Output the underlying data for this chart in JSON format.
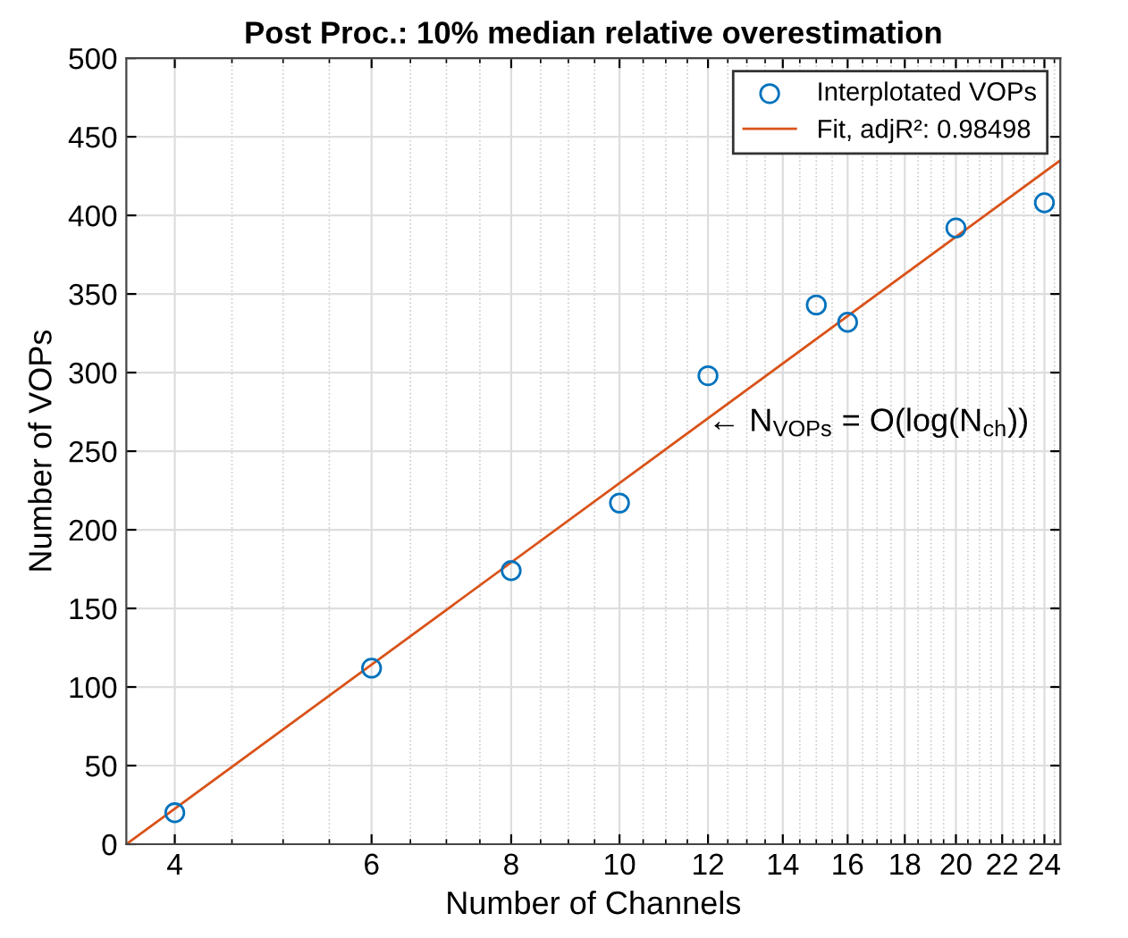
{
  "chart_data": {
    "type": "scatter",
    "title": "Post Proc.: 10% median relative overestimation",
    "xlabel": "Number of Channels",
    "ylabel": "Number of VOPs",
    "log": "x",
    "series": [
      {
        "name": "Interplotated VOPs",
        "color": "#0072bd",
        "marker": "circle",
        "x": [
          4,
          6,
          8,
          10,
          12,
          15,
          16,
          20,
          24
        ],
        "values": [
          20,
          112,
          174,
          217,
          298,
          343,
          332,
          392,
          408
        ]
      },
      {
        "name": "Fit, adjR²: 0.98498",
        "type": "line",
        "color": "#d95319",
        "marker": "none",
        "line_style": "solid",
        "x": [
          3.62,
          24.8
        ],
        "values": [
          0,
          435
        ]
      }
    ],
    "xlim": [
      3.62,
      24.8
    ],
    "xticks": [
      4,
      6,
      8,
      10,
      12,
      14,
      16,
      18,
      20,
      22,
      24
    ],
    "ylim": [
      0,
      500
    ],
    "yticks": [
      0,
      50,
      100,
      150,
      200,
      250,
      300,
      350,
      400,
      450,
      500
    ],
    "grid": true,
    "legend": "top right",
    "annotations": [
      {
        "text": "← N$_{VOPs}$ = O(log(N$_{ch}$))",
        "x": 12,
        "y": 268
      }
    ]
  }
}
